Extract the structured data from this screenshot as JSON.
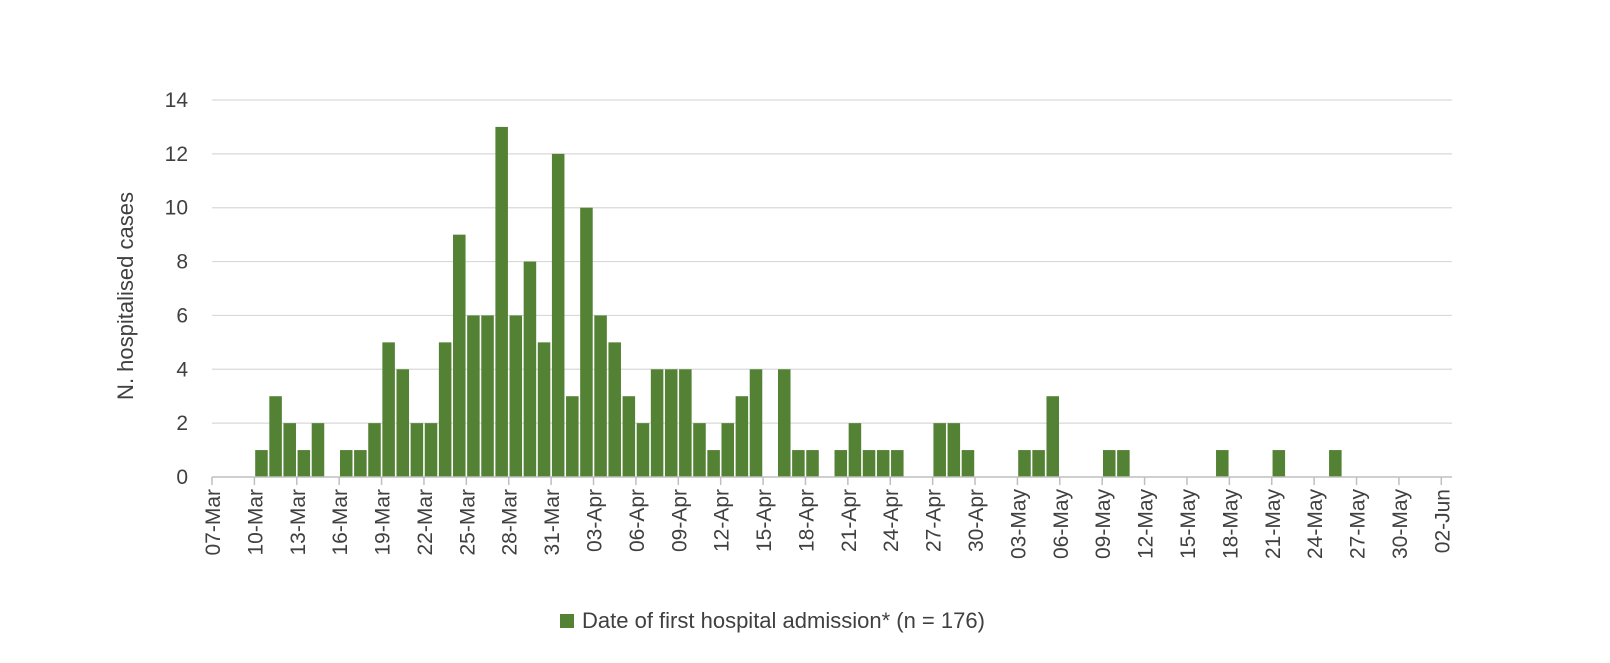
{
  "chart_data": {
    "type": "bar",
    "ylabel": "N. hospitalised cases",
    "ylim": [
      0,
      14
    ],
    "yticks": [
      0,
      2,
      4,
      6,
      8,
      10,
      12,
      14
    ],
    "grid": true,
    "legend_position": "bottom",
    "x_start_date": "07-Mar",
    "x_tick_labels": [
      "07-Mar",
      "10-Mar",
      "13-Mar",
      "16-Mar",
      "19-Mar",
      "22-Mar",
      "25-Mar",
      "28-Mar",
      "31-Mar",
      "03-Apr",
      "06-Apr",
      "09-Apr",
      "12-Apr",
      "15-Apr",
      "18-Apr",
      "21-Apr",
      "24-Apr",
      "27-Apr",
      "30-Apr",
      "03-May",
      "06-May",
      "09-May",
      "12-May",
      "15-May",
      "18-May",
      "21-May",
      "24-May",
      "27-May",
      "30-May",
      "02-Jun"
    ],
    "series": [
      {
        "name": "Date of first hospital admission* (n = 176)",
        "color": "#548235",
        "points": [
          {
            "x": "10-Mar",
            "y": 1
          },
          {
            "x": "11-Mar",
            "y": 3
          },
          {
            "x": "12-Mar",
            "y": 2
          },
          {
            "x": "13-Mar",
            "y": 1
          },
          {
            "x": "14-Mar",
            "y": 2
          },
          {
            "x": "16-Mar",
            "y": 1
          },
          {
            "x": "17-Mar",
            "y": 1
          },
          {
            "x": "18-Mar",
            "y": 2
          },
          {
            "x": "19-Mar",
            "y": 5
          },
          {
            "x": "20-Mar",
            "y": 4
          },
          {
            "x": "21-Mar",
            "y": 2
          },
          {
            "x": "22-Mar",
            "y": 2
          },
          {
            "x": "23-Mar",
            "y": 5
          },
          {
            "x": "24-Mar",
            "y": 9
          },
          {
            "x": "25-Mar",
            "y": 6
          },
          {
            "x": "26-Mar",
            "y": 6
          },
          {
            "x": "27-Mar",
            "y": 13
          },
          {
            "x": "28-Mar",
            "y": 6
          },
          {
            "x": "29-Mar",
            "y": 8
          },
          {
            "x": "30-Mar",
            "y": 5
          },
          {
            "x": "31-Mar",
            "y": 12
          },
          {
            "x": "01-Apr",
            "y": 3
          },
          {
            "x": "02-Apr",
            "y": 10
          },
          {
            "x": "03-Apr",
            "y": 6
          },
          {
            "x": "04-Apr",
            "y": 5
          },
          {
            "x": "05-Apr",
            "y": 3
          },
          {
            "x": "06-Apr",
            "y": 2
          },
          {
            "x": "07-Apr",
            "y": 4
          },
          {
            "x": "08-Apr",
            "y": 4
          },
          {
            "x": "09-Apr",
            "y": 4
          },
          {
            "x": "10-Apr",
            "y": 2
          },
          {
            "x": "11-Apr",
            "y": 1
          },
          {
            "x": "12-Apr",
            "y": 2
          },
          {
            "x": "13-Apr",
            "y": 3
          },
          {
            "x": "14-Apr",
            "y": 4
          },
          {
            "x": "16-Apr",
            "y": 4
          },
          {
            "x": "17-Apr",
            "y": 1
          },
          {
            "x": "18-Apr",
            "y": 1
          },
          {
            "x": "20-Apr",
            "y": 1
          },
          {
            "x": "21-Apr",
            "y": 2
          },
          {
            "x": "22-Apr",
            "y": 1
          },
          {
            "x": "23-Apr",
            "y": 1
          },
          {
            "x": "24-Apr",
            "y": 1
          },
          {
            "x": "27-Apr",
            "y": 2
          },
          {
            "x": "28-Apr",
            "y": 2
          },
          {
            "x": "29-Apr",
            "y": 1
          },
          {
            "x": "03-May",
            "y": 1
          },
          {
            "x": "04-May",
            "y": 1
          },
          {
            "x": "05-May",
            "y": 3
          },
          {
            "x": "09-May",
            "y": 1
          },
          {
            "x": "10-May",
            "y": 1
          },
          {
            "x": "17-May",
            "y": 1
          },
          {
            "x": "21-May",
            "y": 1
          },
          {
            "x": "25-May",
            "y": 1
          }
        ]
      }
    ]
  }
}
